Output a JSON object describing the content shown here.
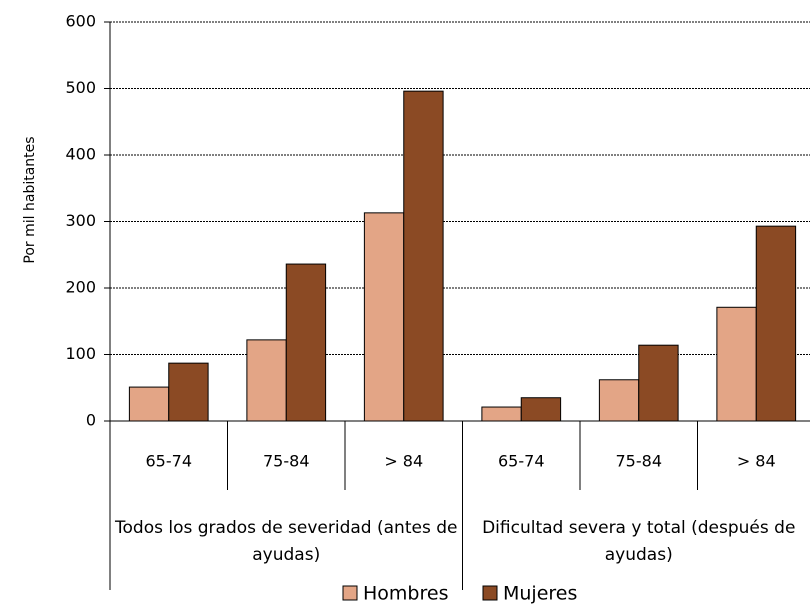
{
  "chart_data": {
    "type": "bar",
    "y_label": "Por mil habitantes",
    "categories": [
      "65-74",
      "75-84",
      "> 84",
      "65-74",
      "75-84",
      "> 84"
    ],
    "category_groups": [
      "Todos los grados de severidad (antes de ayudas)",
      "Dificultad severa y total (después de ayudas)"
    ],
    "series": [
      {
        "name": "Hombres",
        "color": "#e3a586",
        "values": [
          51,
          122,
          313,
          21,
          62,
          171
        ]
      },
      {
        "name": "Mujeres",
        "color": "#8b4a24",
        "values": [
          87,
          236,
          496,
          35,
          114,
          293
        ]
      }
    ],
    "ylim": [
      0,
      600
    ],
    "yticks": [
      0,
      100,
      200,
      300,
      400,
      500,
      600
    ],
    "grid": true,
    "legend": "bottom"
  }
}
